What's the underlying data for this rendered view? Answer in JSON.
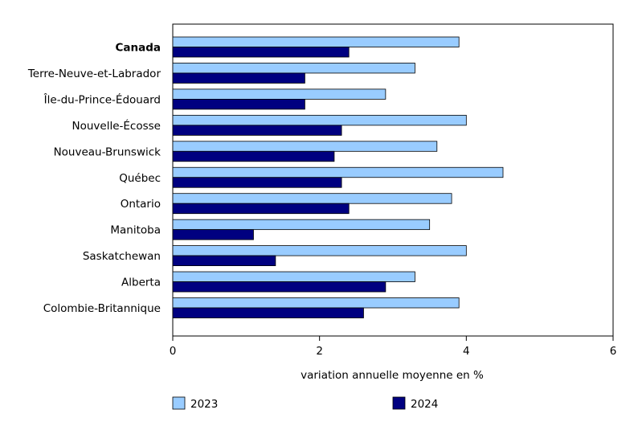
{
  "chart_data": {
    "type": "bar",
    "orientation": "horizontal",
    "categories": [
      "Canada",
      "Terre-Neuve-et-Labrador",
      "Île-du-Prince-Édouard",
      "Nouvelle-Écosse",
      "Nouveau-Brunswick",
      "Québec",
      "Ontario",
      "Manitoba",
      "Saskatchewan",
      "Alberta",
      "Colombie-Britannique"
    ],
    "bold_categories": [
      "Canada"
    ],
    "series": [
      {
        "name": "2023",
        "color": "#99ccff",
        "values": [
          3.9,
          3.3,
          2.9,
          4.0,
          3.6,
          4.5,
          3.8,
          3.5,
          4.0,
          3.3,
          3.9
        ]
      },
      {
        "name": "2024",
        "color": "#000080",
        "values": [
          2.4,
          1.8,
          1.8,
          2.3,
          2.2,
          2.3,
          2.4,
          1.1,
          1.4,
          2.9,
          2.6
        ]
      }
    ],
    "xlabel": "variation annuelle moyenne en %",
    "xlim": [
      0,
      6
    ],
    "xticks": [
      0,
      2,
      4,
      6
    ],
    "xtick_labels": [
      "0",
      "2",
      "4",
      "6"
    ],
    "grid": false,
    "legend_position": "bottom"
  }
}
